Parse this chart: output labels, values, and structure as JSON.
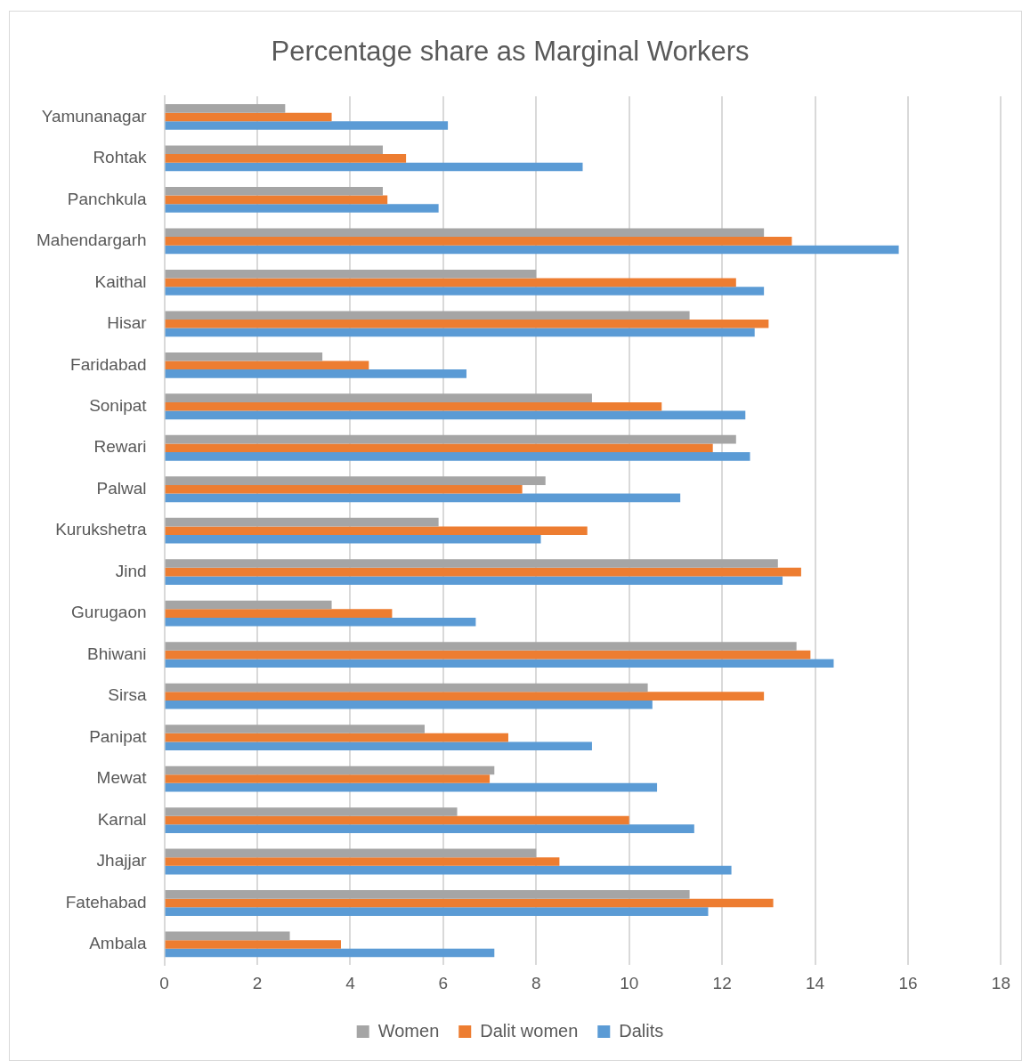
{
  "chart_data": {
    "type": "bar",
    "orientation": "horizontal",
    "title": "Percentage share as Marginal Workers",
    "categories": [
      "Yamunanagar",
      "Rohtak",
      "Panchkula",
      "Mahendargarh",
      "Kaithal",
      "Hisar",
      "Faridabad",
      "Sonipat",
      "Rewari",
      "Palwal",
      "Kurukshetra",
      "Jind",
      "Gurugaon",
      "Bhiwani",
      "Sirsa",
      "Panipat",
      "Mewat",
      "Karnal",
      "Jhajjar",
      "Fatehabad",
      "Ambala"
    ],
    "series": [
      {
        "name": "Women",
        "color": "#a5a5a5",
        "values": [
          2.6,
          4.7,
          4.7,
          12.9,
          8.0,
          11.3,
          3.4,
          9.2,
          12.3,
          8.2,
          5.9,
          13.2,
          3.6,
          13.6,
          10.4,
          5.6,
          7.1,
          6.3,
          8.0,
          11.3,
          2.7
        ]
      },
      {
        "name": "Dalit women",
        "color": "#ed7d31",
        "values": [
          3.6,
          5.2,
          4.8,
          13.5,
          12.3,
          13.0,
          4.4,
          10.7,
          11.8,
          7.7,
          9.1,
          13.7,
          4.9,
          13.9,
          12.9,
          7.4,
          7.0,
          10.0,
          8.5,
          13.1,
          3.8
        ]
      },
      {
        "name": "Dalits",
        "color": "#5b9bd5",
        "values": [
          6.1,
          9.0,
          5.9,
          15.8,
          12.9,
          12.7,
          6.5,
          12.5,
          12.6,
          11.1,
          8.1,
          13.3,
          6.7,
          14.4,
          10.5,
          9.2,
          10.6,
          11.4,
          12.2,
          11.7,
          7.1
        ]
      }
    ],
    "xlim": [
      0,
      18
    ],
    "xticks": [
      0,
      2,
      4,
      6,
      8,
      10,
      12,
      14,
      16,
      18
    ],
    "grid": "x",
    "legend": "bottom"
  }
}
